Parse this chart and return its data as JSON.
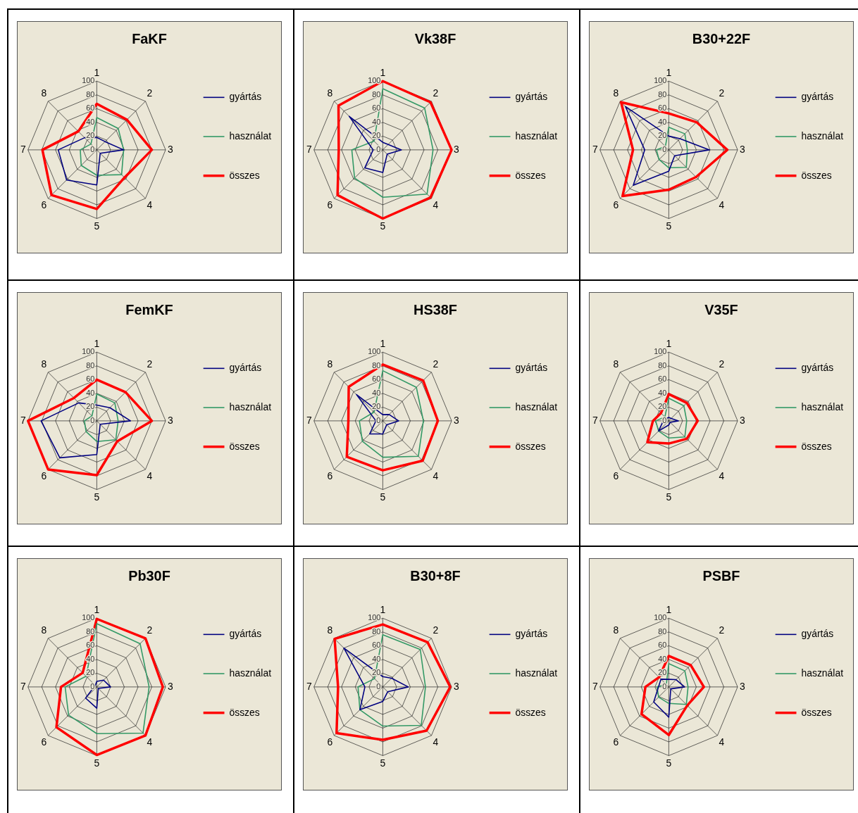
{
  "chart_data": [
    {
      "type": "radar",
      "title": "FaKF",
      "categories": [
        "1",
        "2",
        "3",
        "4",
        "5",
        "6",
        "7",
        "8"
      ],
      "ylim": [
        0,
        100
      ],
      "yticks": [
        0,
        20,
        40,
        60,
        80,
        100
      ],
      "grid": true,
      "legend": "right",
      "marker": "none",
      "series": [
        {
          "name": "gyártás",
          "color": "#000080",
          "values": [
            18,
            17,
            39,
            7,
            51,
            62,
            56,
            25
          ]
        },
        {
          "name": "használat",
          "color": "#339966",
          "values": [
            47,
            44,
            39,
            51,
            37,
            32,
            24,
            12
          ]
        },
        {
          "name": "összes",
          "color": "#ff0000",
          "values": [
            67,
            62,
            80,
            57,
            86,
            93,
            79,
            38
          ]
        }
      ]
    },
    {
      "type": "radar",
      "title": "Vk38F",
      "categories": [
        "1",
        "2",
        "3",
        "4",
        "5",
        "6",
        "7",
        "8"
      ],
      "ylim": [
        0,
        100
      ],
      "yticks": [
        0,
        20,
        40,
        60,
        80,
        100
      ],
      "grid": true,
      "legend": "right",
      "marker": "none",
      "series": [
        {
          "name": "gyártás",
          "color": "#000080",
          "values": [
            11,
            11,
            27,
            9,
            33,
            37,
            14,
            69
          ]
        },
        {
          "name": "használat",
          "color": "#339966",
          "values": [
            89,
            86,
            73,
            91,
            69,
            58,
            45,
            18
          ]
        },
        {
          "name": "összes",
          "color": "#ff0000",
          "values": [
            100,
            98,
            100,
            98,
            100,
            93,
            64,
            91
          ]
        }
      ]
    },
    {
      "type": "radar",
      "title": "B30+22F",
      "categories": [
        "1",
        "2",
        "3",
        "4",
        "5",
        "6",
        "7",
        "8"
      ],
      "ylim": [
        0,
        100
      ],
      "yticks": [
        0,
        20,
        40,
        60,
        80,
        100
      ],
      "grid": true,
      "legend": "right",
      "marker": "none",
      "series": [
        {
          "name": "gyártás",
          "color": "#000080",
          "values": [
            20,
            23,
            59,
            12,
            31,
            73,
            35,
            89
          ]
        },
        {
          "name": "használat",
          "color": "#339966",
          "values": [
            33,
            33,
            27,
            36,
            26,
            20,
            18,
            7
          ]
        },
        {
          "name": "összes",
          "color": "#ff0000",
          "values": [
            53,
            57,
            85,
            56,
            58,
            95,
            52,
            98
          ]
        }
      ]
    },
    {
      "type": "radar",
      "title": "FemKF",
      "categories": [
        "1",
        "2",
        "3",
        "4",
        "5",
        "6",
        "7",
        "8"
      ],
      "ylim": [
        0,
        100
      ],
      "yticks": [
        0,
        20,
        40,
        60,
        80,
        100
      ],
      "grid": true,
      "legend": "right",
      "marker": "none",
      "series": [
        {
          "name": "gyártás",
          "color": "#000080",
          "values": [
            23,
            27,
            49,
            7,
            49,
            76,
            81,
            37
          ]
        },
        {
          "name": "használat",
          "color": "#339966",
          "values": [
            39,
            37,
            31,
            39,
            30,
            22,
            18,
            10
          ]
        },
        {
          "name": "összes",
          "color": "#ff0000",
          "values": [
            60,
            59,
            80,
            42,
            79,
            100,
            100,
            47
          ]
        }
      ]
    },
    {
      "type": "radar",
      "title": "HS38F",
      "categories": [
        "1",
        "2",
        "3",
        "4",
        "5",
        "6",
        "7",
        "8"
      ],
      "ylim": [
        0,
        100
      ],
      "yticks": [
        0,
        20,
        40,
        60,
        80,
        100
      ],
      "grid": true,
      "legend": "right",
      "marker": "none",
      "series": [
        {
          "name": "gyártás",
          "color": "#000080",
          "values": [
            9,
            13,
            23,
            8,
            19,
            27,
            10,
            54
          ]
        },
        {
          "name": "használat",
          "color": "#339966",
          "values": [
            73,
            69,
            59,
            73,
            53,
            42,
            34,
            18
          ]
        },
        {
          "name": "összes",
          "color": "#ff0000",
          "values": [
            82,
            83,
            80,
            82,
            72,
            74,
            50,
            70
          ]
        }
      ]
    },
    {
      "type": "radar",
      "title": "V35F",
      "categories": [
        "1",
        "2",
        "3",
        "4",
        "5",
        "6",
        "7",
        "8"
      ],
      "ylim": [
        0,
        100
      ],
      "yticks": [
        0,
        20,
        40,
        60,
        80,
        100
      ],
      "grid": true,
      "legend": "right",
      "marker": "none",
      "series": [
        {
          "name": "gyártás",
          "color": "#000080",
          "values": [
            5,
            5,
            14,
            3,
            6,
            21,
            8,
            5
          ]
        },
        {
          "name": "használat",
          "color": "#339966",
          "values": [
            33,
            31,
            26,
            33,
            25,
            21,
            19,
            8
          ]
        },
        {
          "name": "összes",
          "color": "#ff0000",
          "values": [
            39,
            37,
            42,
            37,
            33,
            44,
            23,
            16
          ]
        }
      ]
    },
    {
      "type": "radar",
      "title": "Pb30F",
      "categories": [
        "1",
        "2",
        "3",
        "4",
        "5",
        "6",
        "7",
        "8"
      ],
      "ylim": [
        0,
        100
      ],
      "yticks": [
        0,
        20,
        40,
        60,
        80,
        100
      ],
      "grid": true,
      "legend": "right",
      "marker": "none",
      "series": [
        {
          "name": "gyártás",
          "color": "#000080",
          "values": [
            8,
            14,
            20,
            3,
            31,
            23,
            4,
            3
          ]
        },
        {
          "name": "használat",
          "color": "#339966",
          "values": [
            92,
            89,
            76,
            95,
            68,
            58,
            46,
            22
          ]
        },
        {
          "name": "összes",
          "color": "#ff0000",
          "values": [
            99,
            100,
            96,
            100,
            99,
            83,
            52,
            29
          ]
        }
      ]
    },
    {
      "type": "radar",
      "title": "B30+8F",
      "categories": [
        "1",
        "2",
        "3",
        "4",
        "5",
        "6",
        "7",
        "8"
      ],
      "ylim": [
        0,
        100
      ],
      "yticks": [
        0,
        20,
        40,
        60,
        80,
        100
      ],
      "grid": true,
      "legend": "right",
      "marker": "none",
      "series": [
        {
          "name": "gyártás",
          "color": "#000080",
          "values": [
            15,
            18,
            37,
            10,
            21,
            47,
            26,
            80
          ]
        },
        {
          "name": "használat",
          "color": "#339966",
          "values": [
            76,
            77,
            62,
            79,
            57,
            47,
            36,
            17
          ]
        },
        {
          "name": "összes",
          "color": "#ff0000",
          "values": [
            91,
            92,
            98,
            90,
            77,
            95,
            65,
            99
          ]
        }
      ]
    },
    {
      "type": "radar",
      "title": "PSBF",
      "categories": [
        "1",
        "2",
        "3",
        "4",
        "5",
        "6",
        "7",
        "8"
      ],
      "ylim": [
        0,
        100
      ],
      "yticks": [
        0,
        20,
        40,
        60,
        80,
        100
      ],
      "grid": true,
      "legend": "right",
      "marker": "none",
      "series": [
        {
          "name": "gyártás",
          "color": "#000080",
          "values": [
            11,
            15,
            23,
            4,
            44,
            31,
            15,
            16
          ]
        },
        {
          "name": "használat",
          "color": "#339966",
          "values": [
            34,
            33,
            28,
            36,
            24,
            21,
            17,
            5
          ]
        },
        {
          "name": "összes",
          "color": "#ff0000",
          "values": [
            45,
            45,
            51,
            38,
            70,
            56,
            34,
            20
          ]
        }
      ]
    }
  ]
}
